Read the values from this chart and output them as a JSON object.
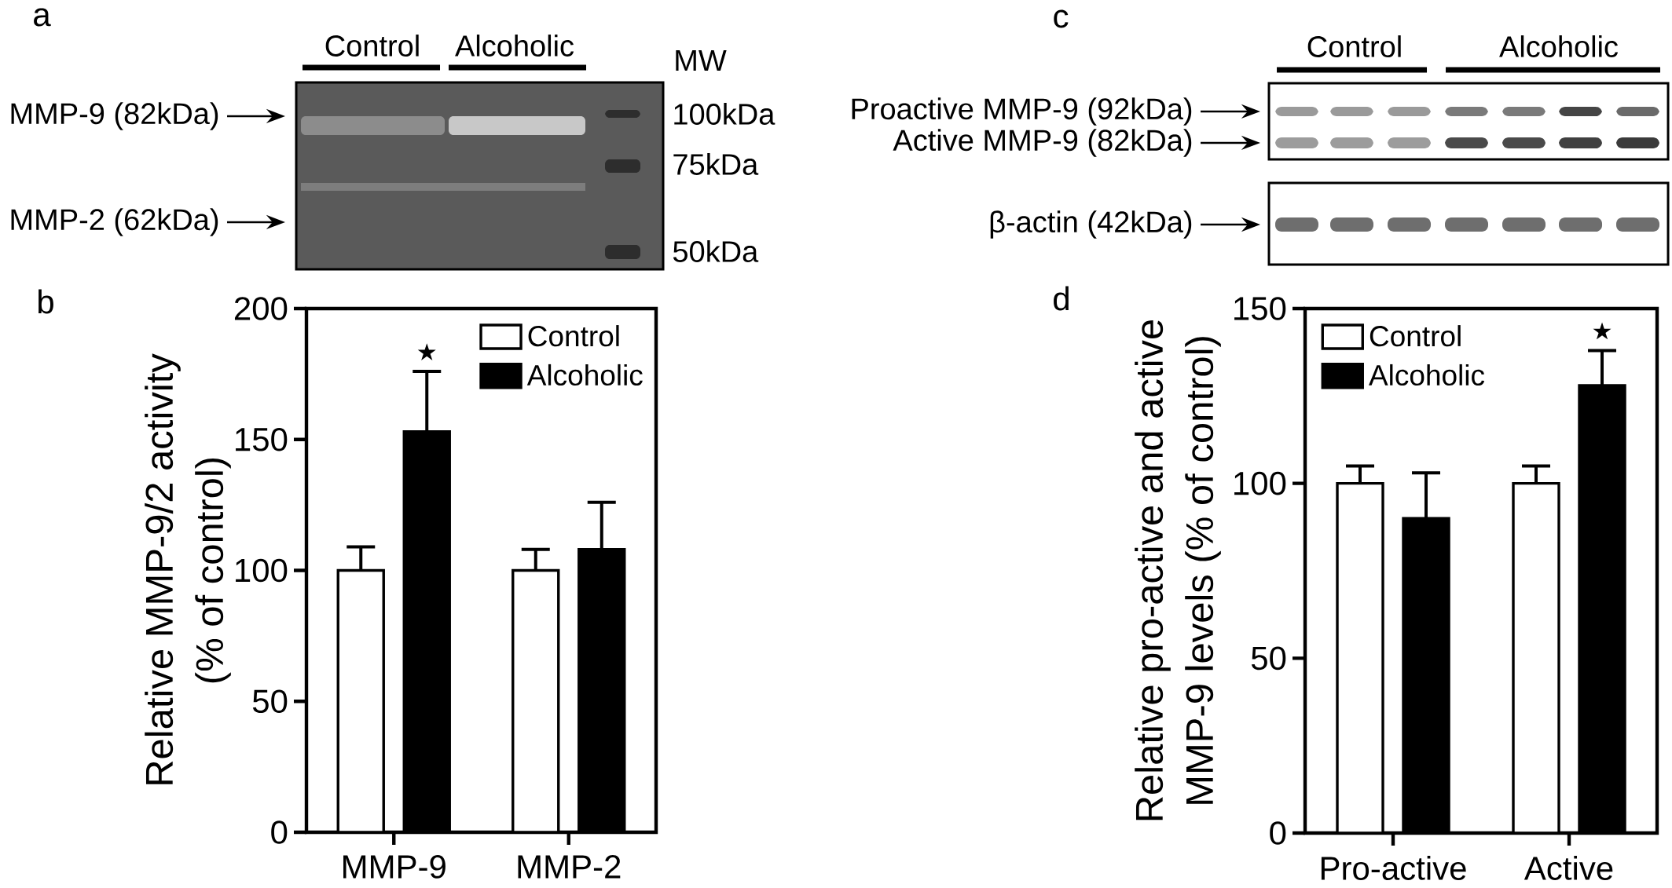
{
  "chart_data": [
    {
      "type": "other",
      "title": "a",
      "annotations": [
        "Control",
        "Alcoholic",
        "MW",
        "MMP-9 (82kDa)",
        "MMP-2 (62kDa)",
        "100kDa",
        "75kDa",
        "50kDa"
      ]
    },
    {
      "type": "bar",
      "title": "b",
      "categories": [
        "MMP-9",
        "MMP-2"
      ],
      "ylabel": "Relative MMP-9/2 activity (% of control)",
      "series": [
        {
          "name": "Control",
          "color": "#ffffff",
          "values": [
            100,
            100
          ],
          "errors": [
            9,
            8
          ]
        },
        {
          "name": "Alcoholic",
          "color": "#000000",
          "values": [
            153,
            108
          ],
          "errors": [
            23,
            18
          ]
        }
      ],
      "ylim": [
        0,
        200
      ],
      "yticks": [
        0,
        50,
        100,
        150,
        200
      ],
      "legend": "top right",
      "annotations": [
        "★"
      ]
    },
    {
      "type": "other",
      "title": "c",
      "annotations": [
        "Control",
        "Alcoholic",
        "Proactive MMP-9 (92kDa)",
        "Active MMP-9 (82kDa)",
        "β-actin (42kDa)"
      ]
    },
    {
      "type": "bar",
      "title": "d",
      "categories": [
        "Pro-active",
        "Active"
      ],
      "ylabel": "Relative pro-active and active MMP-9 levels (% of control)",
      "series": [
        {
          "name": "Control",
          "color": "#ffffff",
          "values": [
            100,
            100
          ],
          "errors": [
            5,
            5
          ]
        },
        {
          "name": "Alcoholic",
          "color": "#000000",
          "values": [
            90,
            128
          ],
          "errors": [
            13,
            10
          ]
        }
      ],
      "ylim": [
        0,
        150
      ],
      "yticks": [
        0,
        50,
        100,
        150
      ],
      "legend": "top left",
      "annotations": [
        "★"
      ]
    }
  ]
}
